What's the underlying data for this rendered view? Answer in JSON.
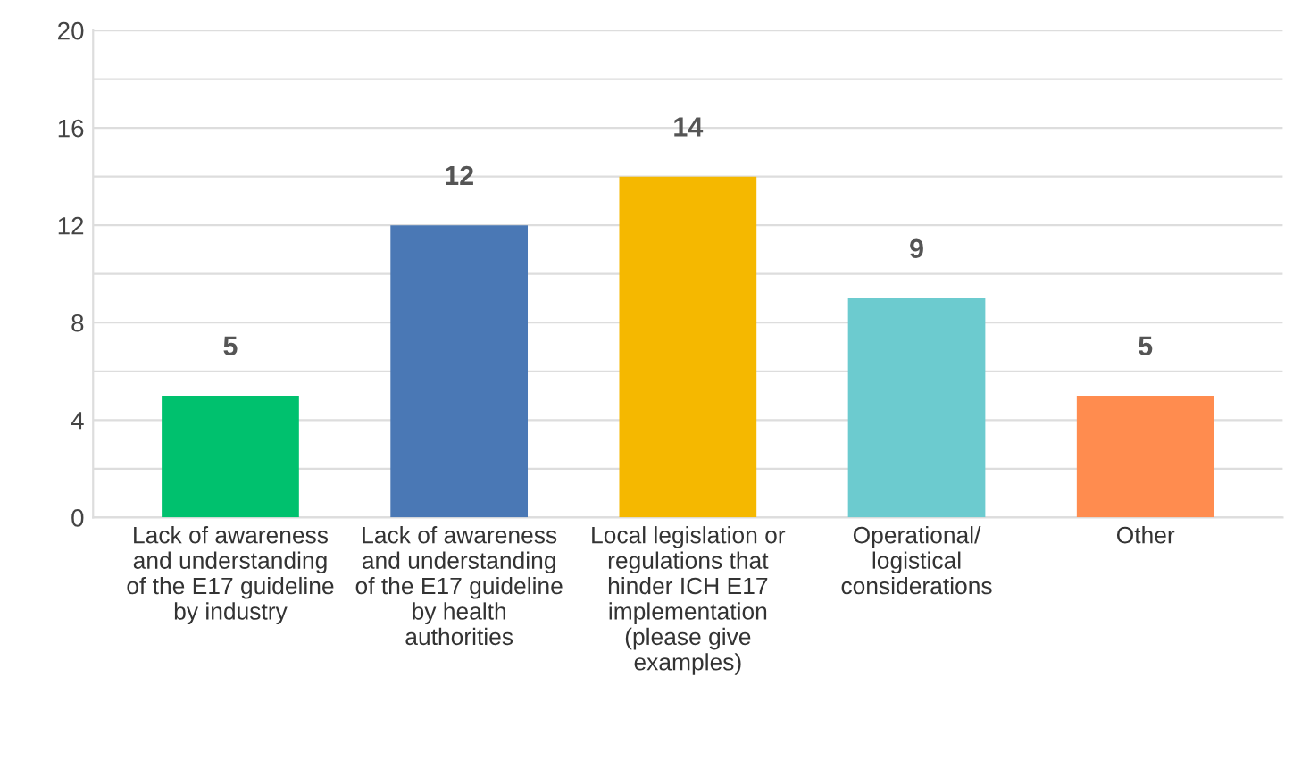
{
  "chart_data": {
    "type": "bar",
    "categories": [
      "Lack of awareness\nand understanding\nof the E17 guideline\nby industry",
      "Lack of awareness\nand understanding\nof the E17 guideline\nby health\nauthorities",
      "Local legislation or\nregulations that\nhinder ICH E17\nimplementation\n(please give\nexamples)",
      "Operational/\nlogistical\nconsiderations",
      "Other"
    ],
    "values": [
      5,
      12,
      14,
      9,
      5
    ],
    "colors": [
      "#00c16e",
      "#4a78b5",
      "#f5b800",
      "#6ccbcf",
      "#ff8c4f"
    ],
    "ylim": [
      0,
      20
    ],
    "yticks": [
      0,
      {
        "value": 2,
        "label": null
      },
      4,
      {
        "value": 6,
        "label": null
      },
      8,
      {
        "value": 10,
        "label": null
      },
      12,
      {
        "value": 14,
        "label": null
      },
      16,
      {
        "value": 18,
        "label": null
      },
      20
    ],
    "grid": "y",
    "data_labels": true
  }
}
